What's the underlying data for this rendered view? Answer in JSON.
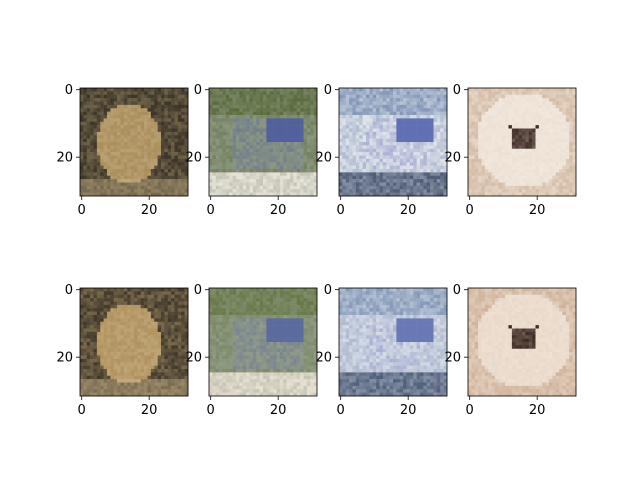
{
  "chart_data": {
    "type": "image-grid",
    "rows": 2,
    "cols": 4,
    "xticks": [
      0,
      20
    ],
    "yticks": [
      0,
      20
    ],
    "xlim": [
      -0.5,
      31.5
    ],
    "ylim": [
      31.5,
      -0.5
    ],
    "panels": [
      {
        "row": 0,
        "col": 0,
        "content": "frog",
        "colors": {
          "base": "#6f6248",
          "accent1": "#a98d5a",
          "accent2": "#3a3427",
          "accent3": "#c9b48a"
        }
      },
      {
        "row": 0,
        "col": 1,
        "content": "truck",
        "colors": {
          "base": "#8b9680",
          "accent1": "#3a4aa8",
          "accent2": "#e9e4da",
          "accent3": "#5a6b3c"
        }
      },
      {
        "row": 0,
        "col": 2,
        "content": "truck",
        "colors": {
          "base": "#dfe3ea",
          "accent1": "#2b3f9a",
          "accent2": "#4c5a74",
          "accent3": "#7f95b6"
        }
      },
      {
        "row": 0,
        "col": 3,
        "content": "dog",
        "colors": {
          "base": "#e5d6c7",
          "accent1": "#f1e7dc",
          "accent2": "#3b2a24",
          "accent3": "#c9a98e"
        }
      },
      {
        "row": 1,
        "col": 0,
        "content": "frog",
        "colors": {
          "base": "#7a6a4c",
          "accent1": "#b0925e",
          "accent2": "#40382a",
          "accent3": "#cdb98f"
        }
      },
      {
        "row": 1,
        "col": 1,
        "content": "truck",
        "colors": {
          "base": "#909a86",
          "accent1": "#4657a8",
          "accent2": "#e8e1d3",
          "accent3": "#667844"
        }
      },
      {
        "row": 1,
        "col": 2,
        "content": "truck",
        "colors": {
          "base": "#d6dbe6",
          "accent1": "#3b4fa0",
          "accent2": "#51607a",
          "accent3": "#8499b8"
        }
      },
      {
        "row": 1,
        "col": 3,
        "content": "dog",
        "colors": {
          "base": "#e1cdbb",
          "accent1": "#eee0d2",
          "accent2": "#3d2b25",
          "accent3": "#c5a184"
        }
      }
    ]
  }
}
